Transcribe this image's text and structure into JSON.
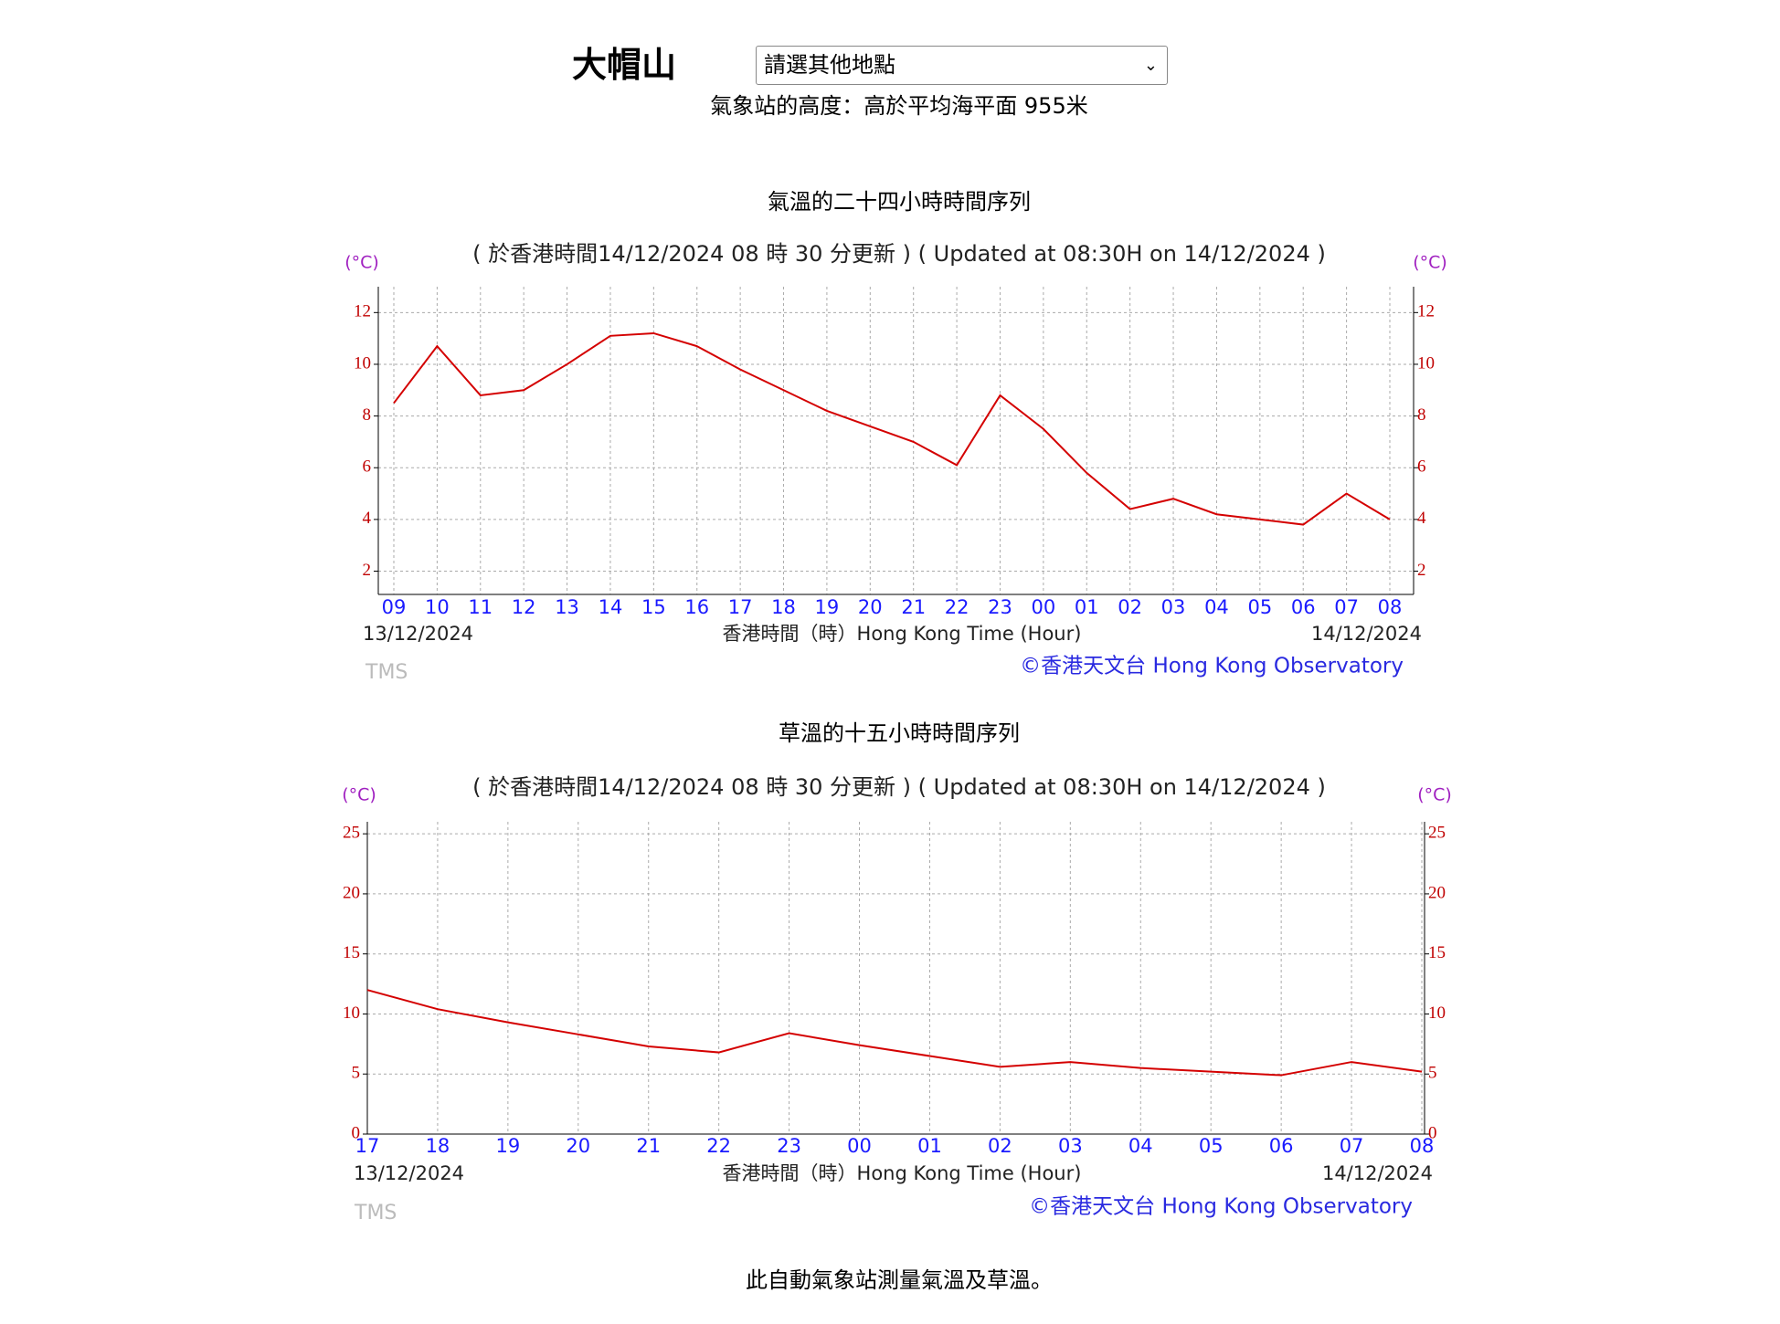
{
  "header": {
    "station": "大帽山",
    "select": "請選其他地點",
    "altitude": "氣象站的高度：高於平均海平面 955米"
  },
  "chart_data": [
    {
      "type": "line",
      "title": "氣溫的二十四小時時間序列",
      "subtitle": "( 於香港時間14/12/2024 08 時 30 分更新 ) ( Updated at 08:30H on 14/12/2024 )",
      "unit": "(°C)",
      "xlabel": "香港時間（時）Hong Kong Time (Hour)",
      "date_start": "13/12/2024",
      "date_end": "14/12/2024",
      "credit": "©香港天文台 Hong Kong Observatory",
      "watermark": "TMS",
      "categories": [
        "09",
        "10",
        "11",
        "12",
        "13",
        "14",
        "15",
        "16",
        "17",
        "18",
        "19",
        "20",
        "21",
        "22",
        "23",
        "00",
        "01",
        "02",
        "03",
        "04",
        "05",
        "06",
        "07",
        "08"
      ],
      "series": [
        {
          "name": "氣溫",
          "color": "#d40000",
          "values": [
            8.5,
            10.7,
            8.8,
            9.0,
            10.0,
            11.1,
            11.2,
            10.7,
            9.8,
            9.0,
            8.2,
            7.6,
            7.0,
            6.1,
            8.8,
            7.5,
            5.8,
            4.4,
            4.8,
            4.2,
            4.0,
            3.8,
            5.0,
            4.0
          ]
        }
      ],
      "ylim": [
        1.1,
        13
      ],
      "yticks": [
        2,
        4,
        6,
        8,
        10,
        12
      ],
      "grid": true
    },
    {
      "type": "line",
      "title": "草溫的十五小時時間序列",
      "subtitle": "( 於香港時間14/12/2024 08 時 30 分更新 ) ( Updated at 08:30H on 14/12/2024 )",
      "unit": "(°C)",
      "xlabel": "香港時間（時）Hong Kong Time (Hour)",
      "date_start": "13/12/2024",
      "date_end": "14/12/2024",
      "credit": "©香港天文台 Hong Kong Observatory",
      "watermark": "TMS",
      "categories": [
        "17",
        "18",
        "19",
        "20",
        "21",
        "22",
        "23",
        "00",
        "01",
        "02",
        "03",
        "04",
        "05",
        "06",
        "07",
        "08"
      ],
      "series": [
        {
          "name": "草溫",
          "color": "#d40000",
          "values": [
            12.0,
            10.4,
            9.3,
            8.3,
            7.3,
            6.8,
            8.4,
            7.4,
            6.5,
            5.6,
            6.0,
            5.5,
            5.2,
            4.9,
            6.0,
            5.2
          ]
        }
      ],
      "ylim": [
        0,
        26
      ],
      "yticks": [
        0,
        5,
        10,
        15,
        20,
        25
      ],
      "grid": true
    }
  ],
  "footer": "此自動氣象站測量氣溫及草溫。"
}
